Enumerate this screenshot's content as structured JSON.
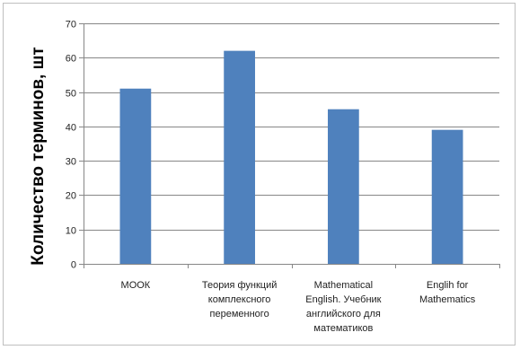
{
  "chart_data": {
    "type": "bar",
    "categories": [
      [
        "МООК"
      ],
      [
        "Теория функций",
        "комплексного",
        "переменного"
      ],
      [
        "Mathematical",
        "English. Учебник",
        "английского для",
        "математиков"
      ],
      [
        "Englih for",
        "Mathematics"
      ]
    ],
    "values": [
      51,
      62,
      45,
      39
    ],
    "title": "",
    "xlabel": "",
    "ylabel": "Количество терминов, шт",
    "ylim": [
      0,
      70
    ],
    "yticks": [
      0,
      10,
      20,
      30,
      40,
      50,
      60,
      70
    ],
    "grid": true,
    "legend": "none",
    "bar_color": "#4F81BD",
    "grid_color": "#878787"
  }
}
